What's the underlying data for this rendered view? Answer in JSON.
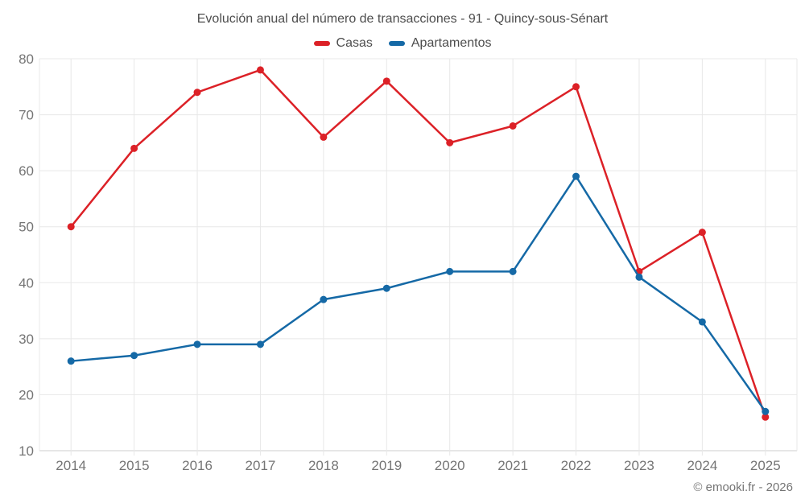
{
  "chart_data": {
    "type": "line",
    "title": "Evolución anual del número de transacciones - 91 - Quincy-sous-Sénart",
    "categories": [
      "2014",
      "2015",
      "2016",
      "2017",
      "2018",
      "2019",
      "2020",
      "2021",
      "2022",
      "2023",
      "2024",
      "2025"
    ],
    "series": [
      {
        "name": "Casas",
        "color": "#dc2127",
        "values": [
          50,
          64,
          74,
          78,
          66,
          76,
          65,
          68,
          75,
          42,
          49,
          16
        ]
      },
      {
        "name": "Apartamentos",
        "color": "#1569a6",
        "values": [
          26,
          27,
          29,
          29,
          37,
          39,
          42,
          42,
          59,
          41,
          33,
          17
        ]
      }
    ],
    "ylim": [
      10,
      80
    ],
    "ytick_step": 10,
    "grid": true,
    "legend_position": "top",
    "footer": "© emooki.fr - 2026"
  },
  "colors": {
    "grid": "#e8e8e8",
    "axis_line": "#cccccc",
    "tick_label": "#757575",
    "title_text": "#4d4d4d"
  }
}
